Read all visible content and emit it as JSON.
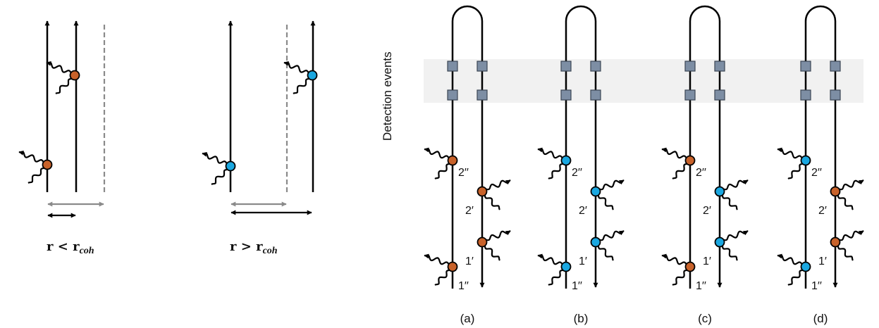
{
  "colors": {
    "orange": "#c8622a",
    "blue": "#1aa7e0",
    "detector": "#7d8ea4",
    "band": "#f1f1f1",
    "dashed": "#8a8a8a",
    "line": "#000000"
  },
  "left_panels": [
    {
      "inequality_label": "r <  r",
      "inequality_sub": "coh",
      "atom_color": "orange"
    },
    {
      "inequality_label": "r >  r",
      "inequality_sub": "coh",
      "atom_color": "blue"
    }
  ],
  "detection_label": "Detection events",
  "loop_diagrams": [
    {
      "caption": "(a)",
      "colors": {
        "2pp": "orange",
        "2p": "orange",
        "1p": "orange",
        "1pp": "orange"
      }
    },
    {
      "caption": "(b)",
      "colors": {
        "2pp": "blue",
        "2p": "blue",
        "1p": "blue",
        "1pp": "blue"
      }
    },
    {
      "caption": "(c)",
      "colors": {
        "2pp": "orange",
        "2p": "blue",
        "1p": "blue",
        "1pp": "orange"
      }
    },
    {
      "caption": "(d)",
      "colors": {
        "2pp": "blue",
        "2p": "orange",
        "1p": "orange",
        "1pp": "blue"
      }
    }
  ],
  "event_labels": {
    "2pp": "2′′",
    "2p": "2′",
    "1p": "1′",
    "1pp": "1′′"
  }
}
